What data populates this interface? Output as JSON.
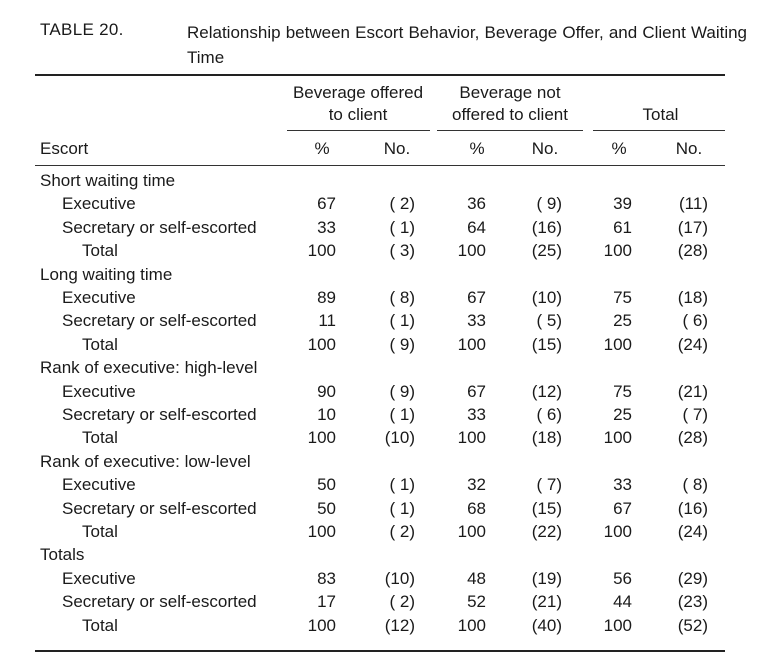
{
  "caption": {
    "label": "TABLE 20.",
    "title": "Relationship between Escort Behavior, Beverage Offer, and Client Waiting Time"
  },
  "headers": {
    "group_offered_line1": "Beverage offered",
    "group_offered_line2": "to client",
    "group_not_offered_line1": "Beverage not",
    "group_not_offered_line2": "offered to client",
    "group_total": "Total",
    "row_header": "Escort",
    "pct": "%",
    "no": "No."
  },
  "sections": [
    {
      "title": "Short waiting time",
      "rows": [
        {
          "label": "Executive",
          "p1": "67",
          "n1": "( 2)",
          "p2": "36",
          "n2": "( 9)",
          "p3": "39",
          "n3": "(11)"
        },
        {
          "label": "Secretary or self-escorted",
          "p1": "33",
          "n1": "( 1)",
          "p2": "64",
          "n2": "(16)",
          "p3": "61",
          "n3": "(17)"
        },
        {
          "label": "Total",
          "p1": "100",
          "n1": "( 3)",
          "p2": "100",
          "n2": "(25)",
          "p3": "100",
          "n3": "(28)"
        }
      ]
    },
    {
      "title": "Long waiting time",
      "rows": [
        {
          "label": "Executive",
          "p1": "89",
          "n1": "( 8)",
          "p2": "67",
          "n2": "(10)",
          "p3": "75",
          "n3": "(18)"
        },
        {
          "label": "Secretary or self-escorted",
          "p1": "11",
          "n1": "( 1)",
          "p2": "33",
          "n2": "( 5)",
          "p3": "25",
          "n3": "( 6)"
        },
        {
          "label": "Total",
          "p1": "100",
          "n1": "( 9)",
          "p2": "100",
          "n2": "(15)",
          "p3": "100",
          "n3": "(24)"
        }
      ]
    },
    {
      "title": "Rank of executive: high-level",
      "rows": [
        {
          "label": "Executive",
          "p1": "90",
          "n1": "( 9)",
          "p2": "67",
          "n2": "(12)",
          "p3": "75",
          "n3": "(21)"
        },
        {
          "label": "Secretary or self-escorted",
          "p1": "10",
          "n1": "( 1)",
          "p2": "33",
          "n2": "( 6)",
          "p3": "25",
          "n3": "( 7)"
        },
        {
          "label": "Total",
          "p1": "100",
          "n1": "(10)",
          "p2": "100",
          "n2": "(18)",
          "p3": "100",
          "n3": "(28)"
        }
      ]
    },
    {
      "title": "Rank of executive: low-level",
      "rows": [
        {
          "label": "Executive",
          "p1": "50",
          "n1": "( 1)",
          "p2": "32",
          "n2": "( 7)",
          "p3": "33",
          "n3": "( 8)"
        },
        {
          "label": "Secretary or self-escorted",
          "p1": "50",
          "n1": "( 1)",
          "p2": "68",
          "n2": "(15)",
          "p3": "67",
          "n3": "(16)"
        },
        {
          "label": "Total",
          "p1": "100",
          "n1": "( 2)",
          "p2": "100",
          "n2": "(22)",
          "p3": "100",
          "n3": "(24)"
        }
      ]
    },
    {
      "title": "Totals",
      "rows": [
        {
          "label": "Executive",
          "p1": "83",
          "n1": "(10)",
          "p2": "48",
          "n2": "(19)",
          "p3": "56",
          "n3": "(29)"
        },
        {
          "label": "Secretary or self-escorted",
          "p1": "17",
          "n1": "( 2)",
          "p2": "52",
          "n2": "(21)",
          "p3": "44",
          "n3": "(23)"
        },
        {
          "label": "Total",
          "p1": "100",
          "n1": "(12)",
          "p2": "100",
          "n2": "(40)",
          "p3": "100",
          "n3": "(52)"
        }
      ]
    }
  ]
}
